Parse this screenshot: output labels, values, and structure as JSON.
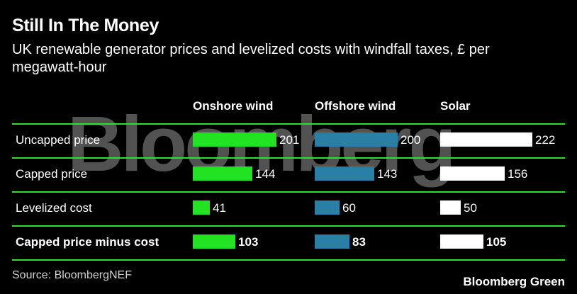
{
  "colors": {
    "background": "#000000",
    "rule": "#2be02b",
    "onshore": "#22e222",
    "offshore": "#2a7fa6",
    "solar": "#ffffff"
  },
  "header": {
    "title": "Still In The Money",
    "subtitle": "UK renewable generator prices and levelized costs with windfall taxes, £ per megawatt-hour"
  },
  "watermark": "Bloomberg",
  "footer": {
    "source": "Source: BloombergNEF",
    "brand": "Bloomberg Green"
  },
  "chart_data": {
    "type": "bar",
    "title": "Still In The Money",
    "subtitle": "UK renewable generator prices and levelized costs with windfall taxes, £ per megawatt-hour",
    "categories": [
      "Uncapped price",
      "Capped price",
      "Levelized cost",
      "Capped price minus cost"
    ],
    "bold_categories": [
      "Capped price minus cost"
    ],
    "series": [
      {
        "name": "Onshore wind",
        "values": [
          201,
          144,
          41,
          103
        ],
        "color": "#22e222"
      },
      {
        "name": "Offshore wind",
        "values": [
          200,
          143,
          60,
          83
        ],
        "color": "#2a7fa6"
      },
      {
        "name": "Solar",
        "values": [
          222,
          156,
          50,
          105
        ],
        "color": "#ffffff"
      }
    ],
    "value_max": 222,
    "grid": false,
    "legend": "column headers"
  }
}
